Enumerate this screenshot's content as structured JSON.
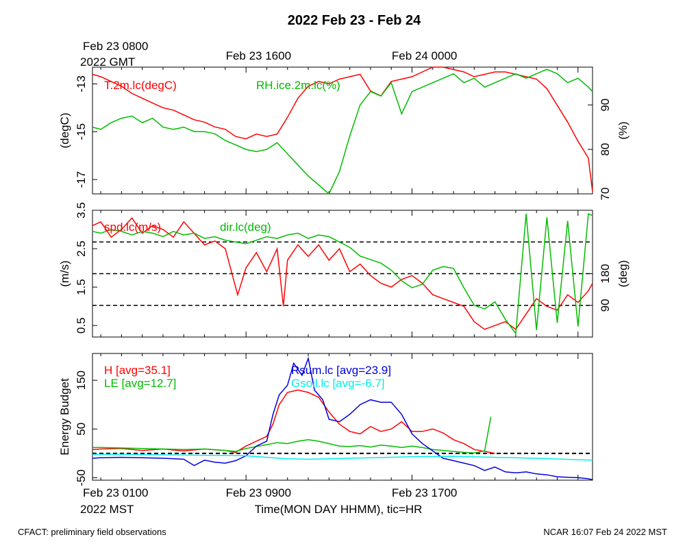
{
  "title": "2022 Feb 23 - Feb 24",
  "top_axis": {
    "first_line1": "Feb 23 0800",
    "first_line2": "2022 GMT",
    "labels": [
      "Feb 23 1600",
      "Feb 24 0000"
    ]
  },
  "bottom_axis": {
    "first_line1": "Feb 23 0100",
    "first_line2": "2022 MST",
    "labels": [
      "Feb 23 0900",
      "Feb 23 1700"
    ],
    "xlabel": "Time(MON DAY HHMM), tic=HR"
  },
  "footer": {
    "left": "CFACT: preliminary field observations",
    "right": "NCAR 16:07 Feb 24 2022 MST"
  },
  "colors": {
    "red": "#ff0000",
    "green": "#00bb00",
    "blue": "#0000dd",
    "cyan": "#00eeee",
    "black": "#000000"
  },
  "chart_data": [
    {
      "type": "line",
      "panel": "temperature",
      "xlim": [
        0.6,
        24.7
      ],
      "ylabel_left": "(degC)",
      "ylim_left": [
        -17.6,
        -12.3
      ],
      "yticks_left": [
        "-13",
        "-15",
        "-17"
      ],
      "ylabel_right": "(%)",
      "ylim_right": [
        70,
        98.5
      ],
      "yticks_right": [
        "90",
        "80",
        "70"
      ],
      "series": [
        {
          "name": "T.2m.lc(degC)",
          "axis": "left",
          "color": "red",
          "x": [
            0.6,
            1.0,
            1.5,
            2.0,
            2.5,
            3.0,
            3.5,
            4.0,
            4.5,
            5.0,
            5.5,
            6.0,
            6.5,
            7.0,
            7.5,
            8.0,
            8.5,
            9.0,
            9.5,
            10.0,
            10.5,
            11.0,
            11.5,
            12.0,
            12.5,
            13.0,
            13.5,
            14.0,
            14.5,
            15.0,
            15.5,
            16.0,
            16.5,
            17.0,
            17.5,
            18.0,
            18.5,
            19.0,
            19.5,
            20.0,
            20.5,
            21.0,
            21.5,
            22.0,
            22.5,
            23.0,
            23.5,
            24.0,
            24.5,
            24.7
          ],
          "y": [
            -12.6,
            -12.7,
            -12.9,
            -13.1,
            -13.4,
            -13.6,
            -13.8,
            -14.0,
            -14.1,
            -14.3,
            -14.5,
            -14.6,
            -14.8,
            -14.9,
            -15.2,
            -15.3,
            -15.1,
            -15.2,
            -15.1,
            -14.4,
            -13.6,
            -13.1,
            -12.9,
            -13.0,
            -12.8,
            -12.7,
            -12.6,
            -13.3,
            -13.5,
            -12.9,
            -12.8,
            -12.7,
            -12.5,
            -12.3,
            -12.3,
            -12.4,
            -12.5,
            -12.7,
            -12.6,
            -12.5,
            -12.5,
            -12.6,
            -12.7,
            -12.8,
            -13.2,
            -13.9,
            -14.6,
            -15.4,
            -16.1,
            -17.5
          ]
        },
        {
          "name": "RH.ice.2m.lc(%)",
          "axis": "right",
          "color": "green",
          "x": [
            0.6,
            1.0,
            1.5,
            2.0,
            2.5,
            3.0,
            3.5,
            4.0,
            4.5,
            5.0,
            5.5,
            6.0,
            6.5,
            7.0,
            7.5,
            8.0,
            8.5,
            9.0,
            9.5,
            10.0,
            10.5,
            11.0,
            11.5,
            12.0,
            12.5,
            13.0,
            13.5,
            14.0,
            14.5,
            15.0,
            15.5,
            16.0,
            16.5,
            17.0,
            17.5,
            18.0,
            18.5,
            19.0,
            19.5,
            20.0,
            20.5,
            21.0,
            21.5,
            22.0,
            22.5,
            23.0,
            23.5,
            24.0,
            24.5,
            24.7
          ],
          "y": [
            85,
            84.5,
            86,
            87,
            87.5,
            86,
            87,
            85,
            84.5,
            85,
            84,
            84,
            83.5,
            82,
            81,
            80,
            79.5,
            80,
            81.5,
            79,
            76.5,
            74,
            72,
            70,
            75,
            83,
            90,
            93,
            92,
            95,
            88,
            93,
            94,
            95,
            96,
            97,
            95,
            96,
            94,
            95,
            96,
            97,
            96,
            97,
            98,
            97,
            95,
            96,
            94,
            93
          ]
        }
      ]
    },
    {
      "type": "line",
      "panel": "wind",
      "xlim": [
        0.6,
        24.7
      ],
      "ylabel_left": "(m/s)",
      "ylim_left": [
        0.2,
        3.5
      ],
      "yticks_left": [
        "3.5",
        "2.5",
        "1.5",
        "0.5"
      ],
      "ylabel_right": "(deg)",
      "ylim_right": [
        0,
        360
      ],
      "yticks_right": [
        "180",
        "90"
      ],
      "reference_lines_deg": [
        270,
        180,
        90
      ],
      "series": [
        {
          "name": "spd.lc(m/s)",
          "axis": "left",
          "color": "red",
          "x": [
            0.6,
            1.0,
            1.5,
            2.0,
            2.5,
            3.0,
            3.5,
            4.0,
            4.5,
            5.0,
            5.5,
            6.0,
            6.5,
            7.0,
            7.3,
            7.6,
            8.0,
            8.5,
            9.0,
            9.5,
            9.8,
            10.0,
            10.5,
            11.0,
            11.5,
            12.0,
            12.5,
            13.0,
            13.5,
            14.0,
            14.5,
            15.0,
            15.5,
            16.0,
            16.5,
            17.0,
            17.5,
            18.0,
            18.5,
            19.0,
            19.5,
            20.0,
            20.5,
            21.0,
            21.5,
            22.0,
            22.5,
            23.0,
            23.5,
            24.0,
            24.5,
            24.7
          ],
          "y": [
            3.1,
            3.2,
            2.8,
            3.0,
            3.3,
            2.9,
            3.1,
            3.0,
            2.8,
            3.2,
            2.9,
            2.6,
            2.7,
            2.5,
            1.9,
            1.3,
            2.0,
            2.4,
            1.9,
            2.5,
            1.0,
            2.2,
            2.6,
            2.3,
            2.6,
            2.2,
            2.5,
            1.9,
            2.1,
            1.8,
            1.6,
            1.5,
            1.7,
            1.8,
            1.6,
            1.3,
            1.2,
            1.1,
            1.0,
            0.6,
            0.4,
            0.5,
            0.6,
            0.4,
            0.8,
            1.2,
            1.0,
            0.9,
            1.3,
            1.1,
            1.4,
            1.6
          ]
        },
        {
          "name": "dir.lc(deg)",
          "axis": "right",
          "color": "green",
          "x": [
            0.6,
            1.0,
            1.5,
            2.0,
            2.5,
            3.0,
            3.5,
            4.0,
            4.5,
            5.0,
            5.5,
            6.0,
            6.5,
            7.0,
            7.5,
            8.0,
            8.5,
            9.0,
            9.5,
            10.0,
            10.5,
            11.0,
            11.5,
            12.0,
            12.5,
            13.0,
            13.5,
            14.0,
            14.5,
            15.0,
            15.5,
            16.0,
            16.5,
            17.0,
            17.5,
            18.0,
            18.5,
            19.0,
            19.5,
            20.0,
            20.5,
            21.0,
            21.5,
            22.0,
            22.5,
            23.0,
            23.5,
            24.0,
            24.5,
            24.7
          ],
          "y": [
            300,
            295,
            305,
            300,
            290,
            300,
            295,
            285,
            300,
            290,
            295,
            280,
            285,
            275,
            270,
            265,
            275,
            285,
            280,
            290,
            295,
            280,
            290,
            285,
            270,
            255,
            230,
            220,
            210,
            190,
            160,
            140,
            150,
            190,
            200,
            195,
            140,
            90,
            80,
            100,
            50,
            10,
            350,
            20,
            340,
            40,
            330,
            30,
            350,
            345
          ]
        }
      ]
    },
    {
      "type": "line",
      "panel": "energy",
      "xlim": [
        0.6,
        24.7
      ],
      "ylabel_left": "Energy Budget",
      "ylim_left": [
        -55,
        205
      ],
      "yticks_left": [
        "150",
        "50",
        "-50"
      ],
      "reference_lines": [
        0
      ],
      "series": [
        {
          "name": "H [avg=35.1]",
          "color": "red",
          "x": [
            0.6,
            1.0,
            2.0,
            3.0,
            4.0,
            5.0,
            6.0,
            7.0,
            7.5,
            8.0,
            8.5,
            9.0,
            9.3,
            9.6,
            10.0,
            10.5,
            11.0,
            11.5,
            12.0,
            12.5,
            13.0,
            13.5,
            14.0,
            14.5,
            15.0,
            15.5,
            16.0,
            16.5,
            17.0,
            17.5,
            18.0,
            18.5,
            19.0,
            19.5,
            20.0
          ],
          "y": [
            8,
            9,
            10,
            6,
            9,
            5,
            9,
            6,
            2,
            15,
            25,
            35,
            60,
            100,
            125,
            130,
            125,
            115,
            85,
            60,
            45,
            40,
            55,
            45,
            50,
            65,
            45,
            45,
            50,
            42,
            28,
            20,
            8,
            4,
            0
          ]
        },
        {
          "name": "LE [avg=12.7]",
          "color": "green",
          "x": [
            0.6,
            1.0,
            2.0,
            3.0,
            4.0,
            5.0,
            6.0,
            7.0,
            7.5,
            8.0,
            8.5,
            9.0,
            9.5,
            10.0,
            10.5,
            11.0,
            11.5,
            12.0,
            12.5,
            13.0,
            13.5,
            14.0,
            14.5,
            15.0,
            15.5,
            16.0,
            16.5,
            17.0,
            17.5,
            18.0,
            18.5,
            19.0,
            19.5,
            19.8
          ],
          "y": [
            12,
            12,
            11,
            10,
            9,
            8,
            9,
            6,
            4,
            10,
            14,
            18,
            22,
            20,
            25,
            28,
            25,
            20,
            15,
            14,
            16,
            13,
            17,
            15,
            12,
            15,
            12,
            8,
            6,
            4,
            2,
            1,
            5,
            75
          ]
        },
        {
          "name": "Rsum.lc [avg=23.9]",
          "color": "blue",
          "x": [
            0.6,
            1.0,
            2.0,
            3.0,
            4.0,
            5.0,
            5.5,
            6.0,
            6.5,
            7.0,
            7.5,
            8.0,
            8.5,
            9.0,
            9.3,
            9.6,
            10.0,
            10.3,
            10.7,
            11.0,
            11.3,
            11.7,
            12.0,
            12.5,
            13.0,
            13.5,
            14.0,
            14.5,
            15.0,
            15.5,
            16.0,
            16.5,
            17.0,
            17.5,
            18.0,
            18.5,
            19.0,
            19.5,
            20.0,
            20.5,
            21.0,
            21.5,
            22.0,
            22.5,
            23.0,
            23.5,
            24.0,
            24.5,
            24.7
          ],
          "y": [
            -10,
            -9,
            -8,
            -9,
            -10,
            -12,
            -25,
            -14,
            -18,
            -20,
            -15,
            -5,
            15,
            25,
            80,
            120,
            140,
            185,
            160,
            195,
            130,
            110,
            70,
            65,
            80,
            100,
            110,
            105,
            105,
            80,
            40,
            20,
            5,
            -10,
            -15,
            -20,
            -25,
            -35,
            -28,
            -38,
            -40,
            -38,
            -42,
            -44,
            -48,
            -49,
            -50,
            -52,
            -54
          ]
        },
        {
          "name": "Gsoil.lc [avg=-6.7]",
          "color": "cyan",
          "x": [
            0.6,
            2.0,
            4.0,
            6.0,
            7.0,
            8.0,
            9.0,
            10.0,
            11.0,
            12.0,
            14.0,
            16.0,
            18.0,
            20.0,
            22.0,
            24.0,
            24.7
          ],
          "y": [
            -2,
            -2,
            -3,
            -4,
            -4,
            -5,
            -8,
            -11,
            -12,
            -11,
            -9,
            -7,
            -6,
            -8,
            -10,
            -13,
            -14
          ]
        }
      ]
    }
  ]
}
